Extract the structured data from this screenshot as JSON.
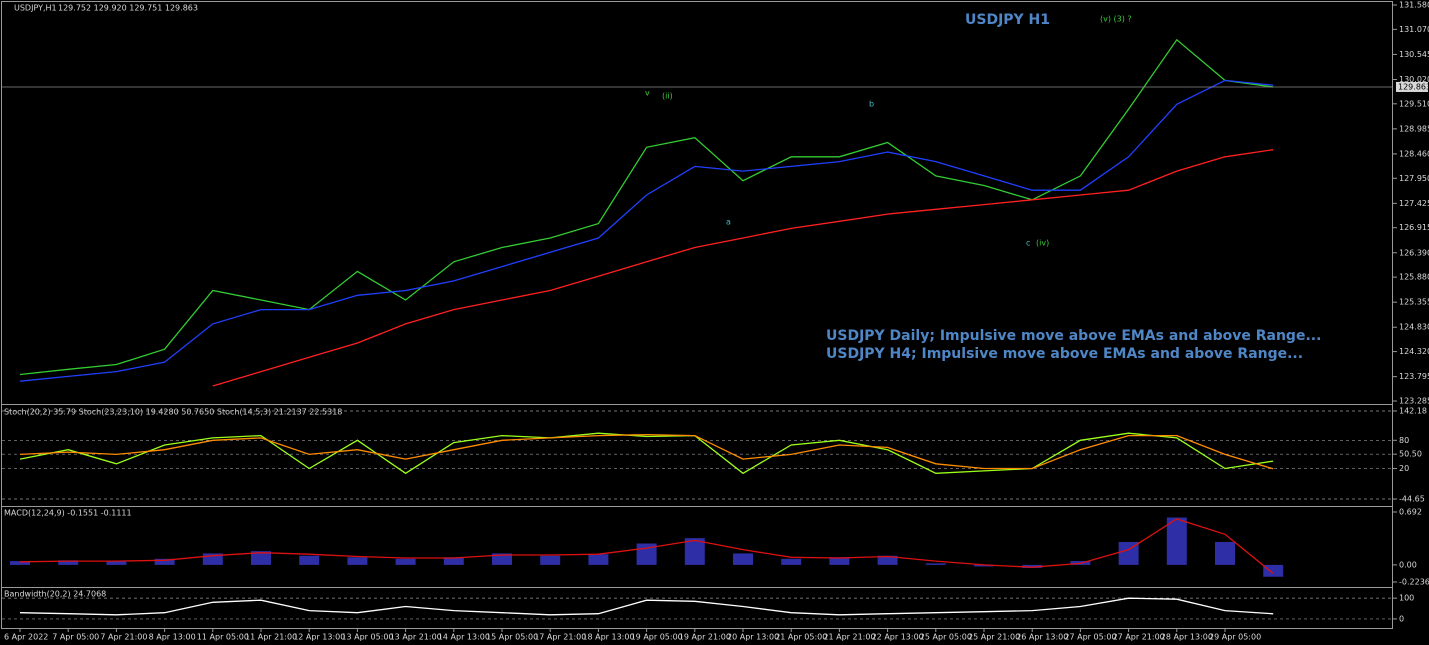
{
  "chart_data": [
    {
      "type": "line",
      "title": "USDJPY,H1",
      "quote": "129.752 129.920 129.751 129.863",
      "heading": "USDJPY H1",
      "annotations": [
        "USDJPY Daily; Impulsive move above EMAs and above Range...",
        "USDJPY H4; Impulsive move above EMAs and above Range..."
      ],
      "wave_labels": [
        "v",
        "(ii)",
        "a",
        "b",
        "c",
        "(iv)",
        "(v) (3) ?"
      ],
      "categories": [
        "6 Apr 2022",
        "7 Apr 05:00",
        "7 Apr 21:00",
        "8 Apr 13:00",
        "11 Apr 05:00",
        "11 Apr 21:00",
        "12 Apr 13:00",
        "13 Apr 05:00",
        "13 Apr 21:00",
        "14 Apr 13:00",
        "15 Apr 05:00",
        "17 Apr 21:00",
        "18 Apr 13:00",
        "19 Apr 05:00",
        "19 Apr 21:00",
        "20 Apr 13:00",
        "21 Apr 05:00",
        "21 Apr 21:00",
        "22 Apr 13:00",
        "25 Apr 05:00",
        "25 Apr 21:00",
        "26 Apr 13:00",
        "27 Apr 05:00",
        "27 Apr 21:00",
        "28 Apr 13:00",
        "29 Apr 05:00",
        null
      ],
      "series": [
        {
          "color": "#33cc33",
          "values": [
            123.84,
            123.95,
            124.05,
            124.37,
            125.6,
            125.4,
            125.2,
            126.0,
            125.4,
            126.2,
            126.5,
            126.7,
            127.0,
            128.6,
            128.8,
            127.9,
            128.4,
            128.4,
            128.7,
            128.0,
            127.8,
            127.5,
            128.0,
            129.4,
            130.85,
            130.0,
            129.863
          ]
        },
        {
          "color": "#2040ff",
          "values": [
            123.7,
            123.8,
            123.9,
            124.1,
            124.9,
            125.2,
            125.2,
            125.5,
            125.6,
            125.8,
            126.1,
            126.4,
            126.7,
            127.6,
            128.2,
            128.1,
            128.2,
            128.3,
            128.5,
            128.3,
            128.0,
            127.7,
            127.7,
            128.4,
            129.5,
            130.0,
            129.9
          ]
        },
        {
          "color": "#ff2020",
          "values": [
            null,
            null,
            null,
            null,
            123.6,
            123.9,
            124.2,
            124.5,
            124.9,
            125.2,
            125.4,
            125.6,
            125.9,
            126.2,
            126.5,
            126.7,
            126.9,
            127.05,
            127.2,
            127.3,
            127.4,
            127.5,
            127.6,
            127.7,
            128.1,
            128.4,
            128.55
          ]
        }
      ],
      "ylim": [
        123.285,
        131.58
      ],
      "yticks": [
        {
          "value": 131.58,
          "label": "131.580"
        },
        {
          "value": 131.07,
          "label": "131.070"
        },
        130.545,
        {
          "value": 130.02,
          "label": "130.020"
        },
        {
          "value": 129.51,
          "label": "129.510"
        },
        128.985,
        {
          "value": 128.46,
          "label": "128.460"
        },
        {
          "value": 127.95,
          "label": "127.950"
        },
        127.425,
        126.915,
        {
          "value": 126.39,
          "label": "126.390"
        },
        {
          "value": 125.88,
          "label": "125.880"
        },
        125.355,
        {
          "value": 124.83,
          "label": "124.830"
        },
        {
          "value": 124.32,
          "label": "124.320"
        },
        123.795,
        123.285
      ],
      "price_line": 129.863,
      "grid": false
    },
    {
      "type": "line",
      "title": "Stoch(20,2) 35.79  Stoch(23,23,10) 19.4280 50.7650  Stoch(14,5,3) 21.2137 22.5318",
      "series": [
        {
          "color": "#9cff1a",
          "values": [
            40,
            60,
            30,
            70,
            85,
            90,
            20,
            80,
            10,
            75,
            90,
            85,
            95,
            88,
            90,
            10,
            70,
            80,
            60,
            10,
            15,
            20,
            80,
            95,
            85,
            20,
            35.79
          ]
        },
        {
          "color": "#ff8c00",
          "values": [
            50,
            55,
            50,
            60,
            80,
            85,
            50,
            60,
            40,
            60,
            80,
            85,
            90,
            92,
            90,
            40,
            50,
            70,
            65,
            30,
            20,
            20,
            60,
            90,
            90,
            50,
            19.428
          ]
        }
      ],
      "ylim": [
        -44.65,
        142.18
      ],
      "yticks": [
        142.18,
        80,
        {
          "value": 50.5,
          "label": "50.50"
        },
        20,
        -44.65
      ],
      "grid": true
    },
    {
      "type": "macd",
      "title": "MACD(12,24,9) -0.1551 -0.1111",
      "series": [
        {
          "kind": "bar",
          "color": "#3a3ad0",
          "values": [
            0.05,
            0.06,
            0.05,
            0.08,
            0.15,
            0.18,
            0.12,
            0.1,
            0.08,
            0.1,
            0.15,
            0.12,
            0.14,
            0.28,
            0.35,
            0.15,
            0.08,
            0.1,
            0.12,
            0.02,
            -0.02,
            -0.04,
            0.05,
            0.3,
            0.62,
            0.3,
            -0.1551
          ]
        },
        {
          "kind": "line",
          "color": "#dd1111",
          "values": [
            0.04,
            0.05,
            0.05,
            0.06,
            0.12,
            0.16,
            0.14,
            0.11,
            0.09,
            0.09,
            0.13,
            0.13,
            0.14,
            0.22,
            0.32,
            0.2,
            0.1,
            0.09,
            0.11,
            0.05,
            0.0,
            -0.03,
            0.02,
            0.2,
            0.6,
            0.4,
            -0.1111
          ]
        }
      ],
      "ylim": [
        -0.2236,
        0.692
      ],
      "yticks": [
        0.692,
        {
          "value": 0,
          "label": "0.00"
        },
        -0.2236
      ],
      "grid": false
    },
    {
      "type": "line",
      "title": "Bandwidth(20,2) 24.7068",
      "series": [
        {
          "color": "#ffffff",
          "values": [
            30,
            25,
            20,
            30,
            80,
            90,
            40,
            30,
            60,
            40,
            30,
            20,
            25,
            90,
            85,
            60,
            30,
            20,
            25,
            30,
            35,
            40,
            60,
            100,
            95,
            40,
            24.7068
          ]
        }
      ],
      "ylim": [
        -10,
        120
      ],
      "yticks": [
        100,
        0
      ],
      "grid": true
    }
  ]
}
